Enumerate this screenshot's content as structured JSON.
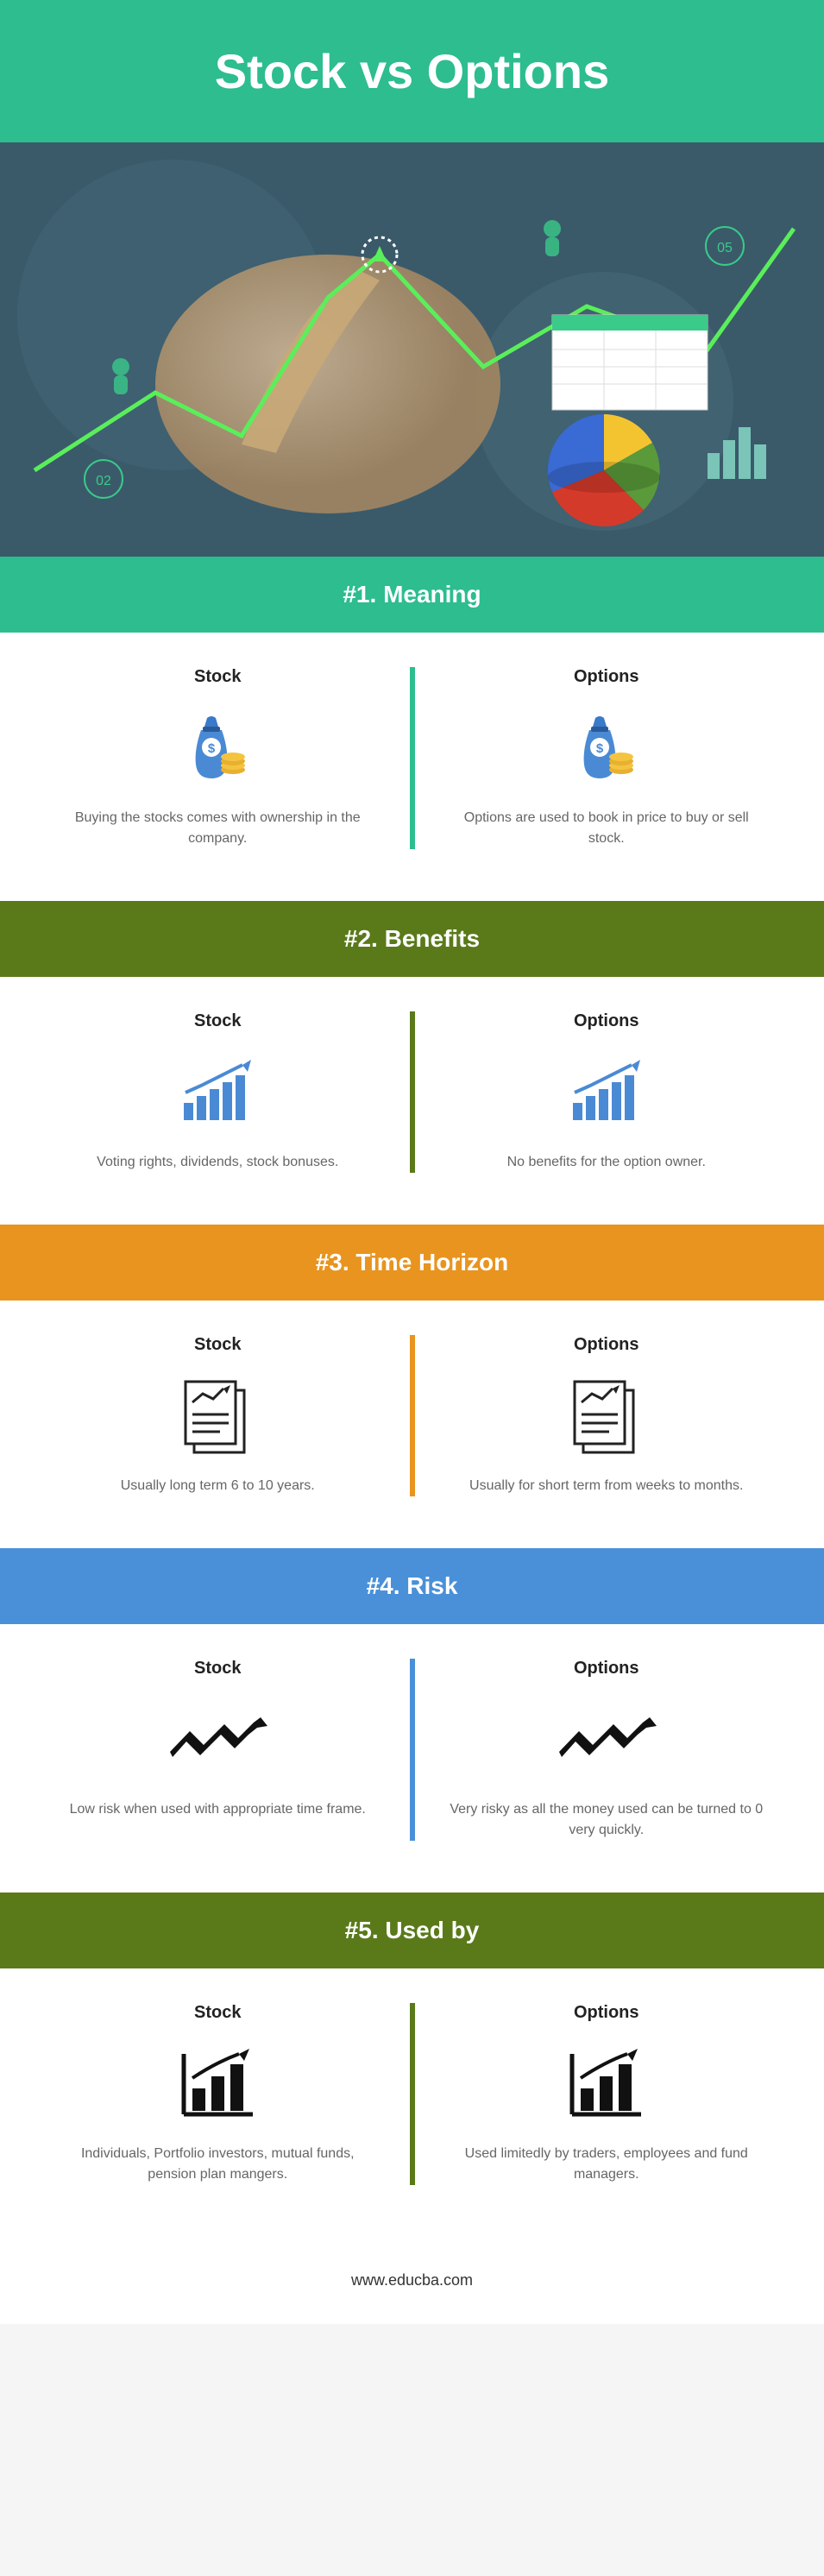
{
  "title": "Stock vs Options",
  "footer": "www.educba.com",
  "colors": {
    "hero": "#2dbd8f",
    "s1": "#2dbd8f",
    "s2": "#5a7a1a",
    "s3": "#e8941f",
    "s4": "#4a90d9",
    "s5": "#5a7a1a"
  },
  "sections": [
    {
      "id": "s1",
      "header": "#1. Meaning",
      "left_title": "Stock",
      "right_title": "Options",
      "left_text": "Buying the stocks comes with ownership in the company.",
      "right_text": "Options are used to book in price to buy or sell stock.",
      "icon": "moneybag"
    },
    {
      "id": "s2",
      "header": "#2. Benefits",
      "left_title": "Stock",
      "right_title": "Options",
      "left_text": "Voting rights, dividends, stock bonuses.",
      "right_text": "No benefits for the option owner.",
      "icon": "barchart"
    },
    {
      "id": "s3",
      "header": "#3. Time Horizon",
      "left_title": "Stock",
      "right_title": "Options",
      "left_text": "Usually long term 6 to 10 years.",
      "right_text": "Usually for short term from weeks to months.",
      "icon": "document"
    },
    {
      "id": "s4",
      "header": "#4. Risk",
      "left_title": "Stock",
      "right_title": "Options",
      "left_text": "Low risk when used with appropriate time frame.",
      "right_text": "Very risky as all the money used can be turned to 0 very quickly.",
      "icon": "zigzag"
    },
    {
      "id": "s5",
      "header": "#5. Used by",
      "left_title": "Stock",
      "right_title": "Options",
      "left_text": "Individuals, Portfolio investors, mutual funds, pension plan mangers.",
      "right_text": "Used limitedly by traders, employees and fund managers.",
      "icon": "growthbars"
    }
  ]
}
